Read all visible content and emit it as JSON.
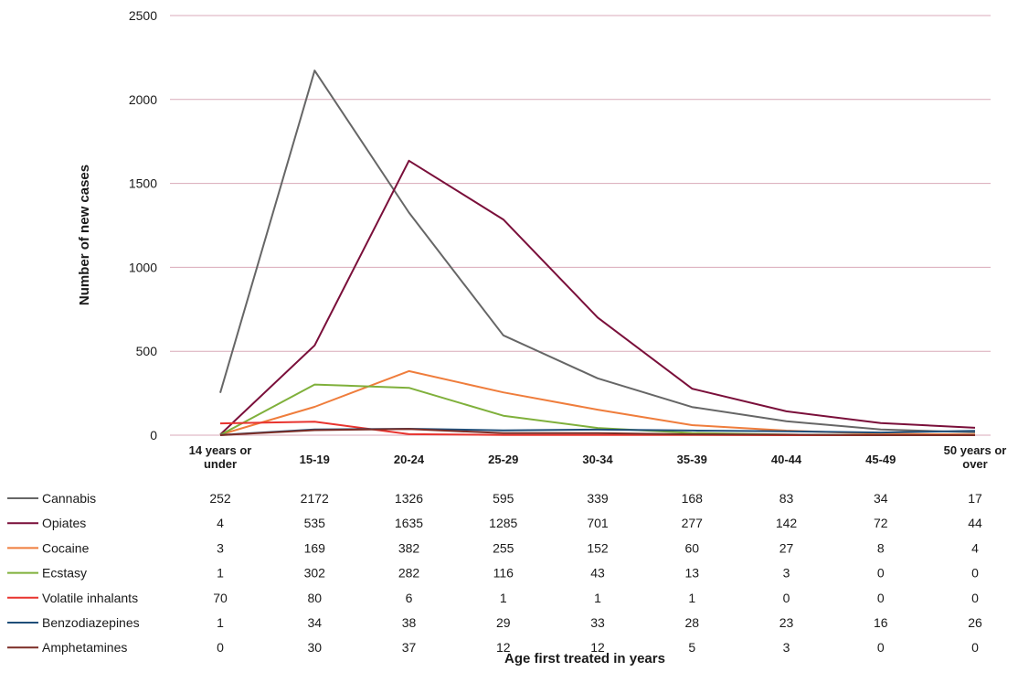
{
  "chart_data": {
    "type": "line",
    "title": "",
    "xlabel": "Age first treated in years",
    "ylabel": "Number of new cases",
    "ylim": [
      0,
      2500
    ],
    "yticks": [
      0,
      500,
      1000,
      1500,
      2000,
      2500
    ],
    "grid": true,
    "legend": "data-table-below",
    "categories": [
      [
        "14 years or",
        "under"
      ],
      [
        "15-19"
      ],
      [
        "20-24"
      ],
      [
        "25-29"
      ],
      [
        "30-34"
      ],
      [
        "35-39"
      ],
      [
        "40-44"
      ],
      [
        "45-49"
      ],
      [
        "50 years or",
        "over"
      ]
    ],
    "series": [
      {
        "name": "Cannabis",
        "color": "#666666",
        "values": [
          252,
          2172,
          1326,
          595,
          339,
          168,
          83,
          34,
          17
        ]
      },
      {
        "name": "Opiates",
        "color": "#7a0f3a",
        "values": [
          4,
          535,
          1635,
          1285,
          701,
          277,
          142,
          72,
          44
        ]
      },
      {
        "name": "Cocaine",
        "color": "#ef7d3c",
        "values": [
          3,
          169,
          382,
          255,
          152,
          60,
          27,
          8,
          4
        ]
      },
      {
        "name": "Ecstasy",
        "color": "#7fb03b",
        "values": [
          1,
          302,
          282,
          116,
          43,
          13,
          3,
          0,
          0
        ]
      },
      {
        "name": "Volatile inhalants",
        "color": "#e8342f",
        "values": [
          70,
          80,
          6,
          1,
          1,
          1,
          0,
          0,
          0
        ]
      },
      {
        "name": "Benzodiazepines",
        "color": "#1f4e79",
        "values": [
          1,
          34,
          38,
          29,
          33,
          28,
          23,
          16,
          26
        ]
      },
      {
        "name": "Amphetamines",
        "color": "#7b2d26",
        "values": [
          0,
          30,
          37,
          12,
          12,
          5,
          3,
          0,
          0
        ]
      }
    ],
    "colors": {
      "gridline": "#d9aab8"
    }
  }
}
